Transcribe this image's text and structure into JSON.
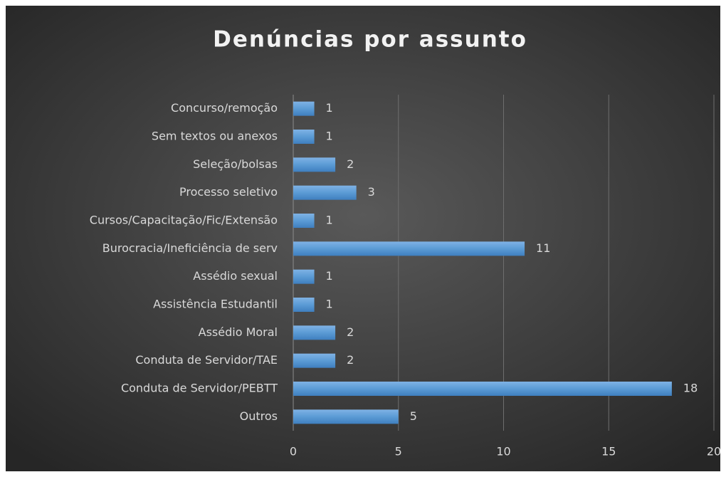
{
  "chart_data": {
    "type": "bar",
    "orientation": "horizontal",
    "title": "Denúncias por assunto",
    "categories": [
      "Concurso/remoção",
      "Sem textos ou anexos",
      "Seleção/bolsas",
      "Processo seletivo",
      "Cursos/Capacitação/Fic/Extensão",
      "Burocracia/Ineficiência de serv",
      "Assédio sexual",
      "Assistência Estudantil",
      "Assédio Moral",
      "Conduta de Servidor/TAE",
      "Conduta de Servidor/PEBTT",
      "Outros"
    ],
    "values": [
      1,
      1,
      2,
      3,
      1,
      11,
      1,
      1,
      2,
      2,
      18,
      5
    ],
    "color": "#5b9bd5",
    "xlim": [
      0,
      20
    ],
    "xticks": [
      0,
      5,
      10,
      15,
      20
    ],
    "grid": true
  }
}
